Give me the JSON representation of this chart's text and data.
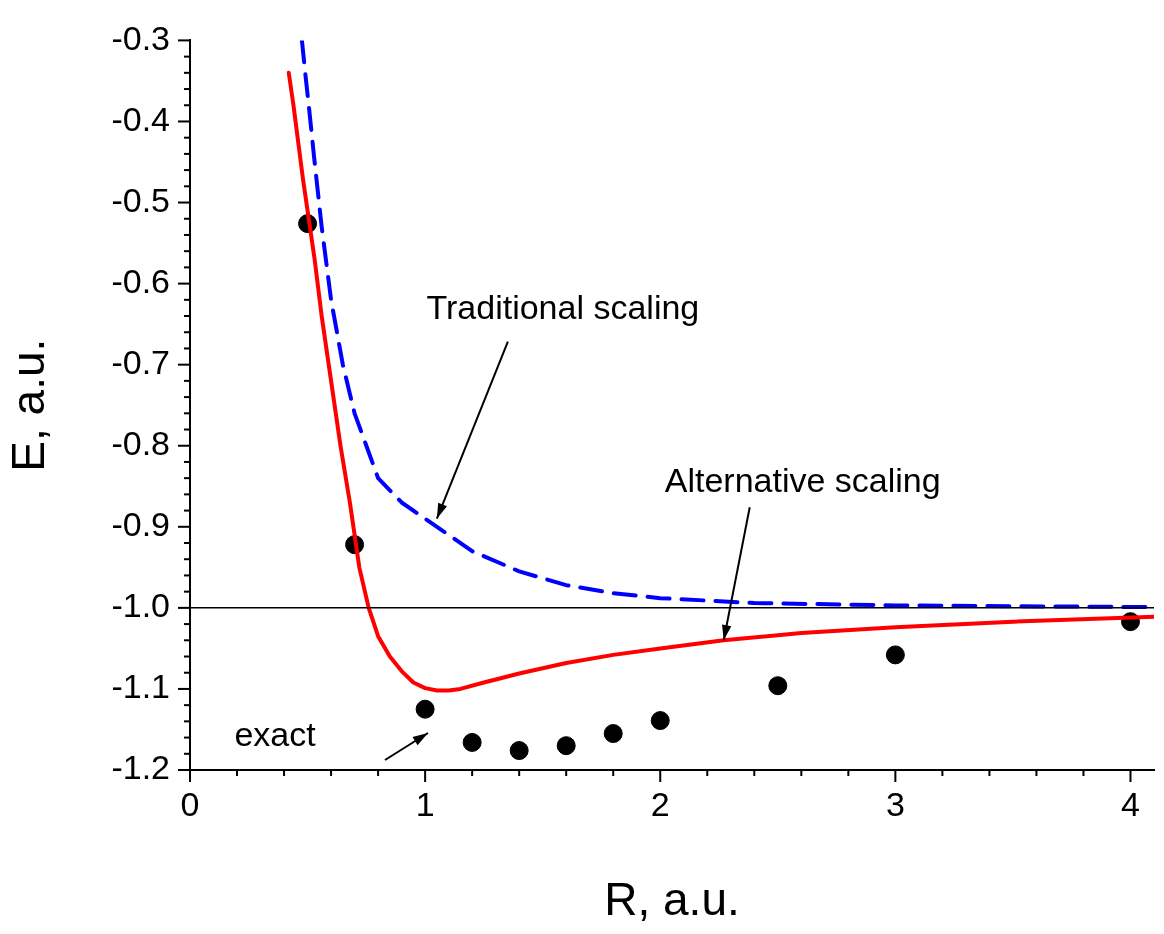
{
  "chart_data": {
    "type": "line",
    "xlabel": "R, a.u.",
    "ylabel": "E, a.u.",
    "xlim": [
      0,
      4.1
    ],
    "ylim": [
      -1.2,
      -0.3
    ],
    "xticks": [
      {
        "value": 0,
        "label": "0"
      },
      {
        "value": 0.2,
        "label": null
      },
      {
        "value": 0.4,
        "label": null
      },
      {
        "value": 0.6,
        "label": null
      },
      {
        "value": 0.8,
        "label": null
      },
      {
        "value": 1,
        "label": "1"
      },
      {
        "value": 1.2,
        "label": null
      },
      {
        "value": 1.4,
        "label": null
      },
      {
        "value": 1.6,
        "label": null
      },
      {
        "value": 1.8,
        "label": null
      },
      {
        "value": 2,
        "label": "2"
      },
      {
        "value": 2.2,
        "label": null
      },
      {
        "value": 2.4,
        "label": null
      },
      {
        "value": 2.6,
        "label": null
      },
      {
        "value": 2.8,
        "label": null
      },
      {
        "value": 3,
        "label": "3"
      },
      {
        "value": 3.2,
        "label": null
      },
      {
        "value": 3.4,
        "label": null
      },
      {
        "value": 3.6,
        "label": null
      },
      {
        "value": 3.8,
        "label": null
      },
      {
        "value": 4,
        "label": "4"
      }
    ],
    "yticks": [
      {
        "value": -1.2,
        "label": "-1.2"
      },
      {
        "value": -1.18,
        "label": null
      },
      {
        "value": -1.16,
        "label": null
      },
      {
        "value": -1.14,
        "label": null
      },
      {
        "value": -1.12,
        "label": null
      },
      {
        "value": -1.1,
        "label": "-1.1"
      },
      {
        "value": -1.08,
        "label": null
      },
      {
        "value": -1.06,
        "label": null
      },
      {
        "value": -1.04,
        "label": null
      },
      {
        "value": -1.02,
        "label": null
      },
      {
        "value": -1.0,
        "label": "-1.0"
      },
      {
        "value": -0.98,
        "label": null
      },
      {
        "value": -0.96,
        "label": null
      },
      {
        "value": -0.94,
        "label": null
      },
      {
        "value": -0.92,
        "label": null
      },
      {
        "value": -0.9,
        "label": "-0.9"
      },
      {
        "value": -0.88,
        "label": null
      },
      {
        "value": -0.86,
        "label": null
      },
      {
        "value": -0.84,
        "label": null
      },
      {
        "value": -0.82,
        "label": null
      },
      {
        "value": -0.8,
        "label": "-0.8"
      },
      {
        "value": -0.78,
        "label": null
      },
      {
        "value": -0.76,
        "label": null
      },
      {
        "value": -0.74,
        "label": null
      },
      {
        "value": -0.72,
        "label": null
      },
      {
        "value": -0.7,
        "label": "-0.7"
      },
      {
        "value": -0.68,
        "label": null
      },
      {
        "value": -0.66,
        "label": null
      },
      {
        "value": -0.64,
        "label": null
      },
      {
        "value": -0.62,
        "label": null
      },
      {
        "value": -0.6,
        "label": "-0.6"
      },
      {
        "value": -0.58,
        "label": null
      },
      {
        "value": -0.56,
        "label": null
      },
      {
        "value": -0.54,
        "label": null
      },
      {
        "value": -0.52,
        "label": null
      },
      {
        "value": -0.5,
        "label": "-0.5"
      },
      {
        "value": -0.48,
        "label": null
      },
      {
        "value": -0.46,
        "label": null
      },
      {
        "value": -0.44,
        "label": null
      },
      {
        "value": -0.42,
        "label": null
      },
      {
        "value": -0.4,
        "label": "-0.4"
      },
      {
        "value": -0.38,
        "label": null
      },
      {
        "value": -0.36,
        "label": null
      },
      {
        "value": -0.34,
        "label": null
      },
      {
        "value": -0.32,
        "label": null
      },
      {
        "value": -0.3,
        "label": "-0.3"
      }
    ],
    "series": [
      {
        "color": "#ff0000",
        "line_style": "solid",
        "x": [
          0.42,
          0.44,
          0.46,
          0.48,
          0.5,
          0.53,
          0.56,
          0.6,
          0.64,
          0.68,
          0.72,
          0.76,
          0.8,
          0.85,
          0.9,
          0.95,
          1.0,
          1.05,
          1.1,
          1.15,
          1.25,
          1.4,
          1.6,
          1.8,
          2.0,
          2.27,
          2.6,
          3.0,
          3.5,
          4.1
        ],
        "values": [
          -0.34,
          -0.38,
          -0.425,
          -0.47,
          -0.51,
          -0.57,
          -0.64,
          -0.72,
          -0.8,
          -0.87,
          -0.95,
          -1.0,
          -1.035,
          -1.06,
          -1.078,
          -1.092,
          -1.099,
          -1.102,
          -1.102,
          -1.1,
          -1.092,
          -1.081,
          -1.068,
          -1.058,
          -1.05,
          -1.04,
          -1.031,
          -1.024,
          -1.017,
          -1.011
        ]
      },
      {
        "color": "#0000ff",
        "line_style": "dashed",
        "x": [
          0.476,
          0.49,
          0.505,
          0.53,
          0.56,
          0.6,
          0.65,
          0.7,
          0.75,
          0.8,
          0.9,
          1.0,
          1.1,
          1.2,
          1.4,
          1.6,
          1.8,
          2.0,
          2.4,
          3.0,
          3.5,
          4.1
        ],
        "values": [
          -0.3,
          -0.34,
          -0.38,
          -0.45,
          -0.53,
          -0.62,
          -0.7,
          -0.76,
          -0.8,
          -0.84,
          -0.87,
          -0.89,
          -0.91,
          -0.93,
          -0.955,
          -0.972,
          -0.982,
          -0.988,
          -0.994,
          -0.997,
          -0.998,
          -0.999
        ]
      },
      {
        "type": "scatter",
        "color": "#000000",
        "marker": "circle",
        "x": [
          0.5,
          0.7,
          1.0,
          1.2,
          1.4,
          1.6,
          1.8,
          2.0,
          2.5,
          3.0,
          4.0
        ],
        "values": [
          -0.526,
          -0.922,
          -1.125,
          -1.166,
          -1.176,
          -1.17,
          -1.155,
          -1.139,
          -1.096,
          -1.058,
          -1.017
        ]
      }
    ],
    "ref_lines": [
      {
        "axis": "y",
        "value": -1.0,
        "color": "#000000"
      }
    ],
    "annotations": [
      {
        "text": "Traditional scaling",
        "x": 1.05,
        "y": -0.89
      },
      {
        "text": "Alternative scaling",
        "x": 2.27,
        "y": -1.04
      },
      "exact"
    ],
    "legend": false,
    "grid": false
  }
}
